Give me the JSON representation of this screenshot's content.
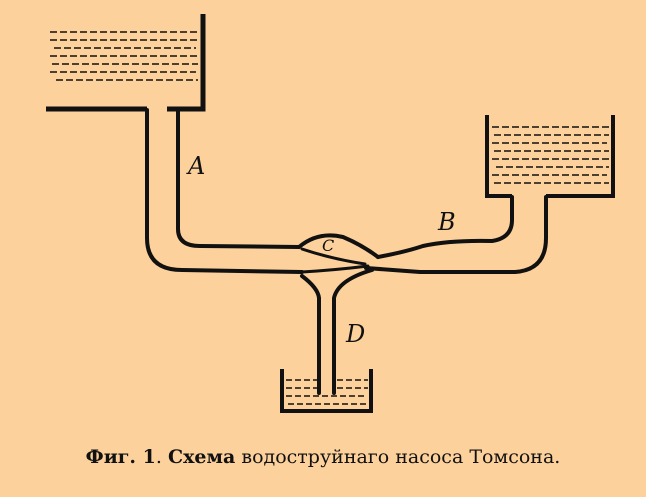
{
  "caption": {
    "prefix": "Фиг. 1",
    "sep": ". ",
    "word": "Схема",
    "rest": " водоструйнаго насоса Томсона."
  },
  "labels": {
    "a": "A",
    "b": "B",
    "c": "C",
    "d": "D"
  },
  "colors": {
    "background": "#fdd19b",
    "ink": "#111111"
  }
}
